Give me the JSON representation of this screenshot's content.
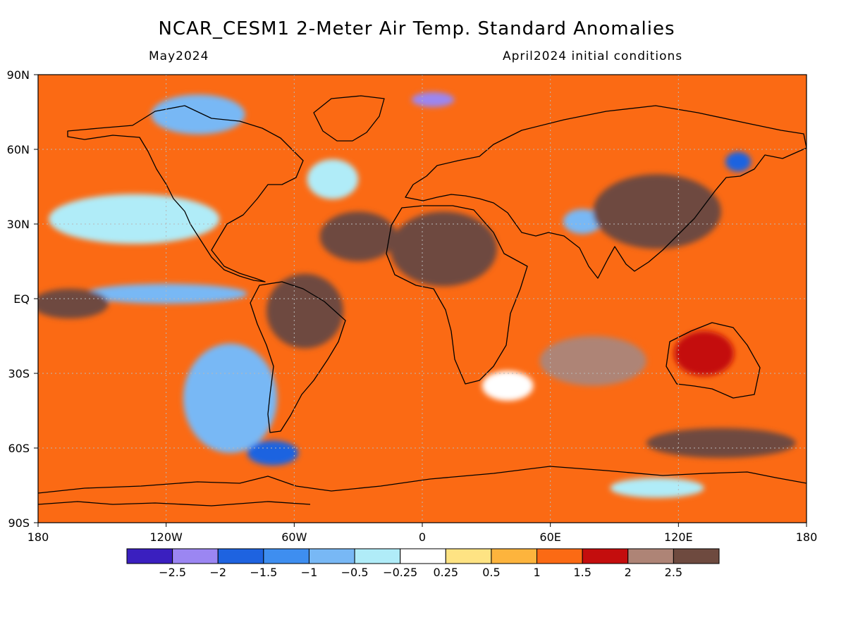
{
  "header": {
    "title": "NCAR_CESM1 2-Meter Air Temp. Standard Anomalies",
    "target_month": "May2024",
    "init_conditions": "April2024 initial conditions"
  },
  "axes": {
    "lat_labels": [
      "90N",
      "60N",
      "30N",
      "EQ",
      "30S",
      "60S",
      "90S"
    ],
    "lat_values": [
      90,
      60,
      30,
      0,
      -30,
      -60,
      -90
    ],
    "lon_labels": [
      "180",
      "120W",
      "60W",
      "0",
      "60E",
      "120E",
      "180"
    ],
    "lon_values": [
      -180,
      -120,
      -60,
      0,
      60,
      120,
      180
    ]
  },
  "colorbar": {
    "colors": [
      "#3a1fbf",
      "#9b86f2",
      "#1e63e0",
      "#3e8ef0",
      "#78b8f5",
      "#b0ecf8",
      "#ffffff",
      "#fee383",
      "#fdb43d",
      "#fb6a14",
      "#c40d0d",
      "#ae8476",
      "#6e4a3f"
    ],
    "tick_labels": [
      "-2.5",
      "-2",
      "-1.5",
      "-1",
      "-0.5",
      "-0.25",
      "0.25",
      "0.5",
      "1",
      "1.5",
      "2",
      "2.5"
    ]
  },
  "map_data": {
    "variable": "2-meter air temperature standard anomaly",
    "projection": "equirectangular",
    "lon_range": [
      -180,
      180
    ],
    "lat_range": [
      -90,
      90
    ],
    "background_class": 9,
    "regions": [
      {
        "name": "north-pacific-cool",
        "lon": -135,
        "lat": 32,
        "rx": 40,
        "ry": 10,
        "class": 5
      },
      {
        "name": "east-pacific-tongue-cool",
        "lon": -120,
        "lat": 2,
        "rx": 38,
        "ry": 4,
        "class": 4
      },
      {
        "name": "southeast-pacific-cool",
        "lon": -90,
        "lat": -40,
        "rx": 22,
        "ry": 22,
        "class": 4
      },
      {
        "name": "drake-passage-cool",
        "lon": -70,
        "lat": -62,
        "rx": 12,
        "ry": 5,
        "class": 2
      },
      {
        "name": "north-atlantic-cool",
        "lon": -42,
        "lat": 48,
        "rx": 12,
        "ry": 8,
        "class": 5
      },
      {
        "name": "arctic-siberia-cool",
        "lon": 5,
        "lat": 80,
        "rx": 10,
        "ry": 3,
        "class": 1
      },
      {
        "name": "nw-canada-cool",
        "lon": -105,
        "lat": 74,
        "rx": 22,
        "ry": 8,
        "class": 4
      },
      {
        "name": "okhotsk-cool",
        "lon": 148,
        "lat": 55,
        "rx": 6,
        "ry": 4,
        "class": 2
      },
      {
        "name": "tibet-cool",
        "lon": 75,
        "lat": 31,
        "rx": 9,
        "ry": 5,
        "class": 4
      },
      {
        "name": "east-antarctica-cool",
        "lon": 110,
        "lat": -76,
        "rx": 22,
        "ry": 4,
        "class": 5
      },
      {
        "name": "south-africa-cool",
        "lon": 40,
        "lat": -35,
        "rx": 12,
        "ry": 6,
        "class": 6
      },
      {
        "name": "north-africa-warm",
        "lon": 10,
        "lat": 20,
        "rx": 25,
        "ry": 15,
        "class": 12
      },
      {
        "name": "central-asia-warm",
        "lon": 110,
        "lat": 35,
        "rx": 30,
        "ry": 15,
        "class": 12
      },
      {
        "name": "south-america-warm",
        "lon": -55,
        "lat": -5,
        "rx": 18,
        "ry": 15,
        "class": 12
      },
      {
        "name": "equatorial-pacific-warm",
        "lon": -165,
        "lat": -2,
        "rx": 18,
        "ry": 6,
        "class": 12
      },
      {
        "name": "indian-ocean-warm",
        "lon": 80,
        "lat": -25,
        "rx": 25,
        "ry": 10,
        "class": 11
      },
      {
        "name": "southern-ocean-warm",
        "lon": 140,
        "lat": -58,
        "rx": 35,
        "ry": 6,
        "class": 12
      },
      {
        "name": "atlantic-subtropics-warm",
        "lon": -30,
        "lat": 25,
        "rx": 18,
        "ry": 10,
        "class": 12
      },
      {
        "name": "australia-warm",
        "lon": 132,
        "lat": -22,
        "rx": 14,
        "ry": 9,
        "class": 10
      }
    ]
  }
}
